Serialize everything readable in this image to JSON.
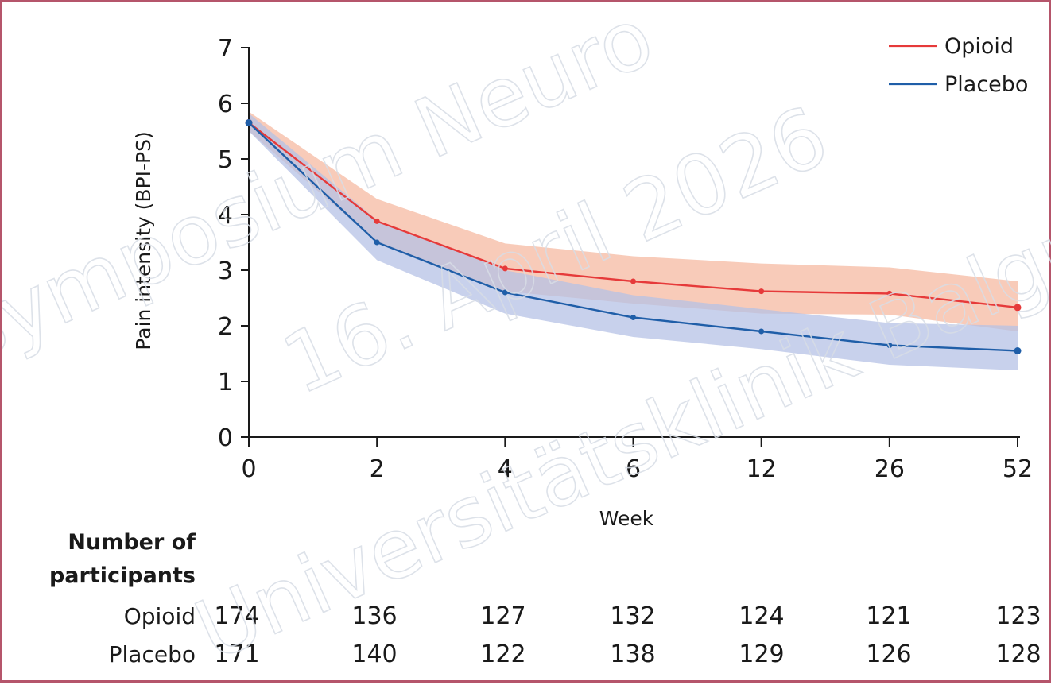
{
  "chart_data": {
    "type": "line",
    "title": "",
    "xlabel": "Week",
    "ylabel": "Pain intensity (BPI-PS)",
    "ylim": [
      0,
      7
    ],
    "yticks": [
      "0",
      "1",
      "2",
      "3",
      "4",
      "5",
      "6",
      "7"
    ],
    "categories": [
      "0",
      "2",
      "4",
      "6",
      "12",
      "26",
      "52"
    ],
    "legend_position": "top-right",
    "series": [
      {
        "name": "Opioid",
        "color": "#e63a3a",
        "band_color": "#f7c2ad",
        "values": [
          5.65,
          3.88,
          3.03,
          2.8,
          2.62,
          2.58,
          2.33
        ],
        "ci_lower": [
          5.5,
          3.5,
          2.62,
          2.4,
          2.22,
          2.2,
          1.9
        ],
        "ci_upper": [
          5.85,
          4.28,
          3.48,
          3.25,
          3.12,
          3.05,
          2.8
        ]
      },
      {
        "name": "Placebo",
        "color": "#1f5ea8",
        "band_color": "#b6c2e6",
        "values": [
          5.65,
          3.5,
          2.6,
          2.15,
          1.9,
          1.65,
          1.55
        ],
        "ci_lower": [
          5.5,
          3.18,
          2.22,
          1.8,
          1.58,
          1.3,
          1.2
        ],
        "ci_upper": [
          5.82,
          3.9,
          3.0,
          2.55,
          2.3,
          2.05,
          2.0
        ]
      }
    ],
    "participants": {
      "title": [
        "Number of",
        "participants"
      ],
      "rows": [
        {
          "label": "Opioid",
          "values": [
            "174",
            "136",
            "127",
            "132",
            "124",
            "121",
            "123"
          ]
        },
        {
          "label": "Placebo",
          "values": [
            "171",
            "140",
            "122",
            "138",
            "129",
            "126",
            "128"
          ]
        }
      ]
    }
  },
  "watermark": {
    "lines": [
      "Symposium Neuro",
      "16. April 2026",
      "Universitätsklinik Balgrist"
    ]
  }
}
